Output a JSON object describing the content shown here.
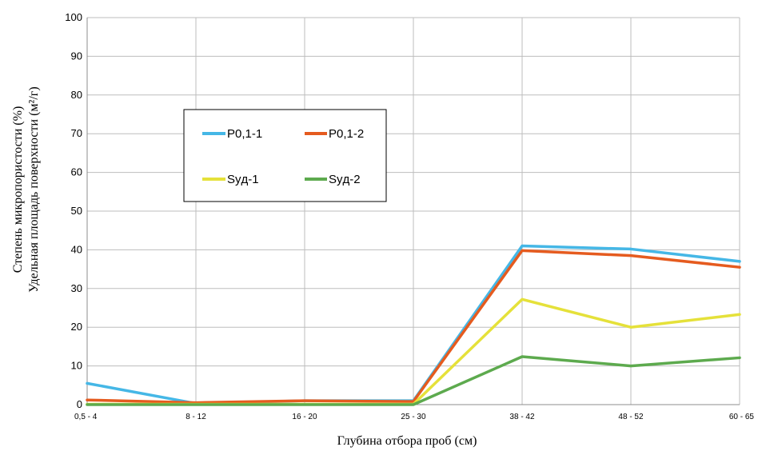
{
  "chart_data": {
    "type": "line",
    "categories": [
      "0,5 - 4",
      "8 - 12",
      "16 - 20",
      "25 - 30",
      "38 - 42",
      "48 - 52",
      "60 - 65"
    ],
    "series": [
      {
        "name": "P0,1-1",
        "color": "#45b7e6",
        "values": [
          5.5,
          0.3,
          1.0,
          1.0,
          41.0,
          40.2,
          37.0
        ]
      },
      {
        "name": "P0,1-2",
        "color": "#e55b1f",
        "values": [
          1.2,
          0.5,
          1.0,
          0.8,
          39.8,
          38.5,
          35.5
        ]
      },
      {
        "name": "Syд-1",
        "color": "#e5e13a",
        "values": [
          0.1,
          0.1,
          0.1,
          0.1,
          27.2,
          20.0,
          23.3
        ]
      },
      {
        "name": "Syд-2",
        "color": "#5daa4e",
        "values": [
          0.0,
          0.0,
          0.0,
          0.0,
          12.4,
          10.0,
          12.1
        ]
      }
    ],
    "xlabel": "Глубина отбора проб (см)",
    "ylabel_line1": "Степень микропористости (%)",
    "ylabel_line2": "Удельная площадь поверхности (м²/г)",
    "ylim": [
      0,
      100
    ],
    "yticks": [
      0,
      10,
      20,
      30,
      40,
      50,
      60,
      70,
      80,
      90,
      100
    ],
    "grid": true,
    "legend_position": "upper-left-inside"
  }
}
